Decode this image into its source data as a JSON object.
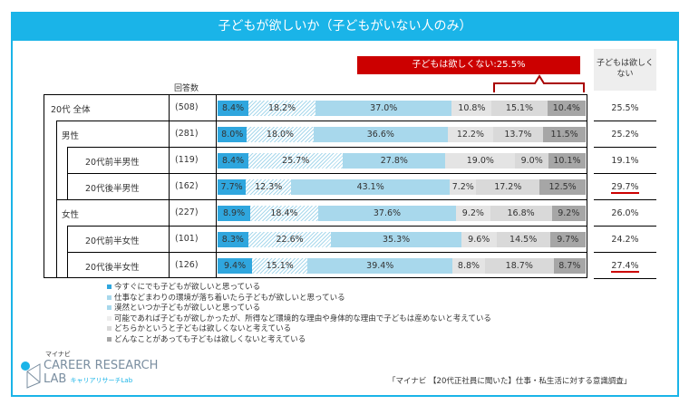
{
  "title": "子どもが欲しいか（子どもがいない人のみ）",
  "chart_data": {
    "type": "bar",
    "stacked": true,
    "orientation": "horizontal",
    "title": "子どもが欲しいか（子どもがいない人のみ）",
    "n_header": "回答数",
    "summary_label": "子どもは欲しくない:25.5%",
    "right_header": "子どもは欲しくない",
    "series": [
      {
        "name": "今すぐにでも子どもが欲しいと思っている",
        "color": "#2fa6de"
      },
      {
        "name": "仕事などまわりの環境が落ち着いたら子どもが欲しいと思っている",
        "color": "#a8d8ec"
      },
      {
        "name": "漠然といつか子どもが欲しいと思っている",
        "color": "#a8d8ec"
      },
      {
        "name": "可能であれば子どもが欲しかったが、所得など環境的な理由や身体的な理由で子どもは産めないと考えている",
        "color": "#e6e6e6"
      },
      {
        "name": "どちらかというと子どもは欲しくないと考えている",
        "color": "#d9d9d9"
      },
      {
        "name": "どんなことがあっても子どもは欲しくないと考えている",
        "color": "#a6a6a6"
      }
    ],
    "rows": [
      {
        "label": "20代 全体",
        "n": "(508)",
        "values": [
          8.4,
          18.2,
          37.0,
          10.8,
          15.1,
          10.4
        ],
        "not_want": "25.5%",
        "level": 0,
        "highlight": false
      },
      {
        "label": "男性",
        "n": "(281)",
        "values": [
          8.0,
          18.0,
          36.6,
          12.2,
          13.7,
          11.5
        ],
        "not_want": "25.2%",
        "level": 1,
        "highlight": false
      },
      {
        "label": "20代前半男性",
        "n": "(119)",
        "values": [
          8.4,
          25.7,
          27.8,
          19.0,
          9.0,
          10.1
        ],
        "not_want": "19.1%",
        "level": 2,
        "highlight": false
      },
      {
        "label": "20代後半男性",
        "n": "(162)",
        "values": [
          7.7,
          12.3,
          43.1,
          7.2,
          17.2,
          12.5
        ],
        "not_want": "29.7%",
        "level": 2,
        "highlight": true
      },
      {
        "label": "女性",
        "n": "(227)",
        "values": [
          8.9,
          18.4,
          37.6,
          9.2,
          16.8,
          9.2
        ],
        "not_want": "26.0%",
        "level": 1,
        "highlight": false
      },
      {
        "label": "20代前半女性",
        "n": "(101)",
        "values": [
          8.3,
          22.6,
          35.3,
          9.6,
          14.5,
          9.7
        ],
        "not_want": "24.2%",
        "level": 2,
        "highlight": false
      },
      {
        "label": "20代後半女性",
        "n": "(126)",
        "values": [
          9.4,
          15.1,
          39.4,
          8.8,
          18.7,
          8.7
        ],
        "not_want": "27.4%",
        "level": 2,
        "highlight": true
      }
    ]
  },
  "logo": {
    "brand": "マイナビ",
    "name1": "CAREER RESEARCH",
    "name2": "LAB",
    "sub": "キャリアリサーチLab"
  },
  "source": "「マイナビ 【20代正社員に聞いた】仕事・私生活に対する意識調査」"
}
